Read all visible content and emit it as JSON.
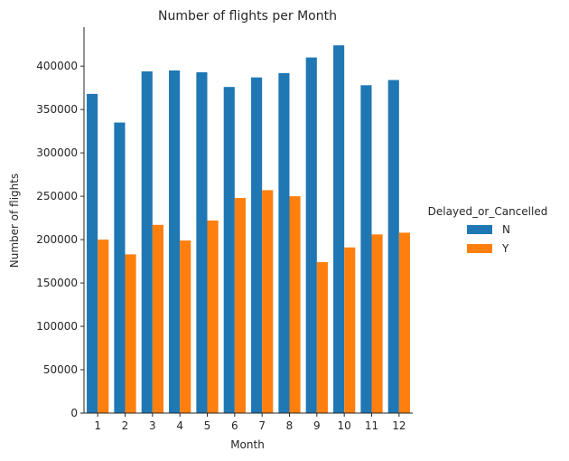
{
  "chart_data": {
    "type": "bar",
    "title": "Number of flights per Month",
    "xlabel": "Month",
    "ylabel": "Number of flights",
    "categories": [
      "1",
      "2",
      "3",
      "4",
      "5",
      "6",
      "7",
      "8",
      "9",
      "10",
      "11",
      "12"
    ],
    "series": [
      {
        "name": "N",
        "color": "#1f77b4",
        "values": [
          368000,
          335000,
          394000,
          395000,
          393000,
          376000,
          387000,
          392000,
          410000,
          424000,
          378000,
          384000
        ]
      },
      {
        "name": "Y",
        "color": "#ff7f0e",
        "values": [
          200000,
          183000,
          217000,
          199000,
          222000,
          248000,
          257000,
          250000,
          174000,
          191000,
          206000,
          208000
        ]
      }
    ],
    "ylim": [
      0,
      445000
    ],
    "yticks": [
      0,
      50000,
      100000,
      150000,
      200000,
      250000,
      300000,
      350000,
      400000
    ],
    "ytick_labels": [
      "0",
      "50000",
      "100000",
      "150000",
      "200000",
      "250000",
      "300000",
      "350000",
      "400000"
    ],
    "grid": false,
    "legend": {
      "title": "Delayed_or_Cancelled",
      "placement": "right-outside"
    }
  }
}
